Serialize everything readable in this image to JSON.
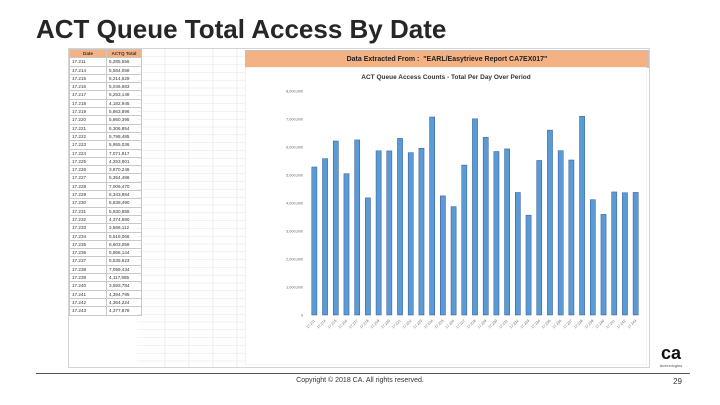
{
  "slide": {
    "title": "ACT Queue Total Access By Date",
    "footer": "Copyright © 2018 CA. All rights reserved.",
    "page_number": "29",
    "logo_text": "ca",
    "logo_subtext": "technologies"
  },
  "sheet": {
    "header_date": "Date",
    "header_total": "ACTQ Total",
    "banner": "Data Extracted From :  \"EARL/Easytrieve Report CA7EX017\"",
    "rows": [
      [
        "17.211",
        "5,285,556"
      ],
      [
        "17.214",
        "5,584,058"
      ],
      [
        "17.215",
        "6,214,629"
      ],
      [
        "17.216",
        "5,046,683"
      ],
      [
        "17.217",
        "6,253,148"
      ],
      [
        "17.218",
        "4,182,945"
      ],
      [
        "17.219",
        "5,863,896"
      ],
      [
        "17.220",
        "5,860,395"
      ],
      [
        "17.221",
        "6,306,854"
      ],
      [
        "17.222",
        "5,798,485"
      ],
      [
        "17.223",
        "5,955,036"
      ],
      [
        "17.224",
        "7,071,917"
      ],
      [
        "17.225",
        "4,253,901"
      ],
      [
        "17.226",
        "3,870,246"
      ],
      [
        "17.227",
        "5,354,486"
      ],
      [
        "17.228",
        "7,006,470"
      ],
      [
        "17.229",
        "6,343,884"
      ],
      [
        "17.230",
        "5,838,490"
      ],
      [
        "17.231",
        "5,930,858"
      ],
      [
        "17.232",
        "4,374,690"
      ],
      [
        "17.233",
        "3,566,112"
      ],
      [
        "17.234",
        "5,519,066"
      ],
      [
        "17.235",
        "6,603,059"
      ],
      [
        "17.236",
        "5,868,144"
      ],
      [
        "17.237",
        "5,535,623"
      ],
      [
        "17.238",
        "7,099,434"
      ],
      [
        "17.239",
        "4,117,985"
      ],
      [
        "17.240",
        "3,593,784"
      ],
      [
        "17.241",
        "4,394,795"
      ],
      [
        "17.242",
        "4,364,224"
      ],
      [
        "17.243",
        "4,377,878"
      ]
    ]
  },
  "chart_data": {
    "type": "bar",
    "title": "ACT Queue Access Counts - Total Per Day Over Period",
    "xlabel": "",
    "ylabel": "",
    "ylim": [
      0,
      8000000
    ],
    "yticks": [
      "0",
      "1,000,000",
      "2,000,000",
      "3,000,000",
      "4,000,000",
      "5,000,000",
      "6,000,000",
      "7,000,000",
      "8,000,000"
    ],
    "ytick_values": [
      0,
      1000000,
      2000000,
      3000000,
      4000000,
      5000000,
      6000000,
      7000000,
      8000000
    ],
    "grid": false,
    "legend": "none",
    "bar_color": "#5b9bd5",
    "bar_edge_color": "#2f5597",
    "categories": [
      "17.211",
      "17.214",
      "17.215",
      "17.216",
      "17.217",
      "17.218",
      "17.219",
      "17.220",
      "17.221",
      "17.222",
      "17.223",
      "17.224",
      "17.225",
      "17.226",
      "17.227",
      "17.228",
      "17.229",
      "17.230",
      "17.231",
      "17.232",
      "17.233",
      "17.234",
      "17.235",
      "17.236",
      "17.237",
      "17.238",
      "17.239",
      "17.240",
      "17.241",
      "17.242",
      "17.243"
    ],
    "values": [
      5285556,
      5584058,
      6214629,
      5046683,
      6253148,
      4182945,
      5863896,
      5860395,
      6306854,
      5798485,
      5955036,
      7071917,
      4253901,
      3870246,
      5354486,
      7006470,
      6343884,
      5838490,
      5930858,
      4374690,
      3566112,
      5519066,
      6603059,
      5868144,
      5535623,
      7099434,
      4117985,
      3593784,
      4394795,
      4364224,
      4377878
    ]
  }
}
